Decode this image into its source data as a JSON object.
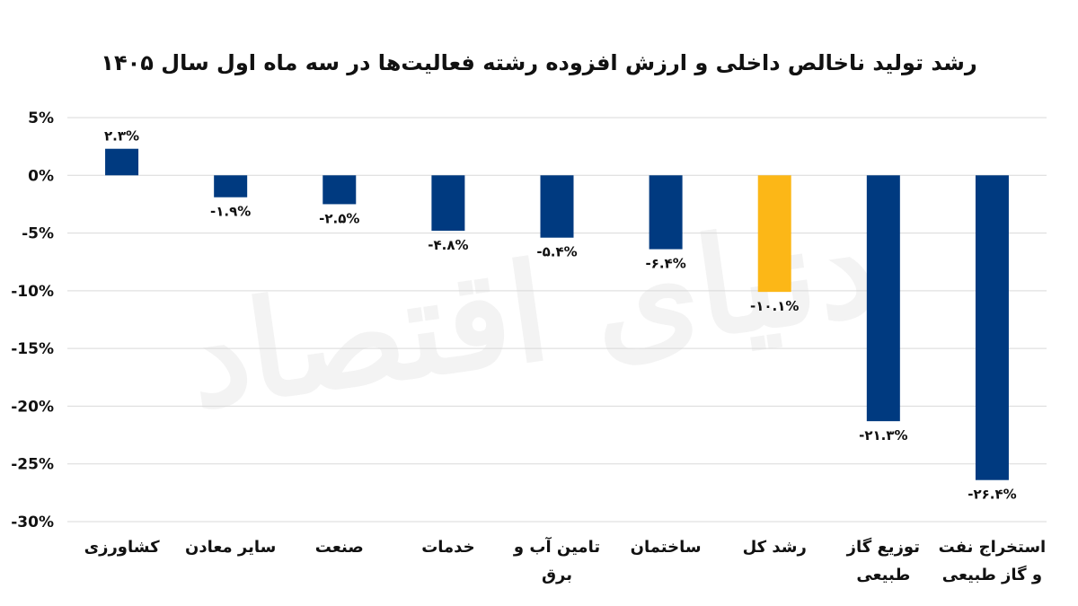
{
  "chart_data": {
    "type": "bar",
    "title": "رشد تولید ناخالص داخلی و ارزش افزوده رشته فعالیت‌ها در سه ماه اول سال ۱۴۰۵",
    "categories": [
      "کشاورزی",
      "سایر معادن",
      "صنعت",
      "خدمات",
      "تامین آب و برق",
      "ساختمان",
      "رشد کل",
      "توزیع گاز طبیعی",
      "استخراج نفت و گاز طبیعی"
    ],
    "category_lines": [
      [
        "کشاورزی"
      ],
      [
        "سایر معادن"
      ],
      [
        "صنعت"
      ],
      [
        "خدمات"
      ],
      [
        "تامین آب و",
        "برق"
      ],
      [
        "ساختمان"
      ],
      [
        "رشد کل"
      ],
      [
        "توزیع گاز",
        "طبیعی"
      ],
      [
        "استخراج نفت",
        "و گاز طبیعی"
      ]
    ],
    "values": [
      2.3,
      -1.9,
      -2.5,
      -4.8,
      -5.4,
      -6.4,
      -10.1,
      -21.3,
      -26.4
    ],
    "data_labels": [
      "۲.۳%",
      "-۱.۹%",
      "-۲.۵%",
      "-۴.۸%",
      "-۵.۴%",
      "-۶.۴%",
      "-۱۰.۱%",
      "-۲۱.۳%",
      "-۲۶.۴%"
    ],
    "bar_colors": [
      "#003a80",
      "#003a80",
      "#003a80",
      "#003a80",
      "#003a80",
      "#003a80",
      "#fcb717",
      "#003a80",
      "#003a80"
    ],
    "highlight_category": "رشد کل",
    "ylim": [
      -30,
      5
    ],
    "yticks": [
      5,
      0,
      -5,
      -10,
      -15,
      -20,
      -25,
      -30
    ],
    "ytick_labels": [
      "5%",
      "0%",
      "-5%",
      "-10%",
      "-15%",
      "-20%",
      "-25%",
      "-30%"
    ],
    "grid": true,
    "legend": "none"
  },
  "watermark": "دنیای اقتصاد",
  "colors": {
    "bar": "#003a80",
    "highlight": "#fcb717",
    "grid": "#d9d9d9",
    "text": "#111111"
  }
}
